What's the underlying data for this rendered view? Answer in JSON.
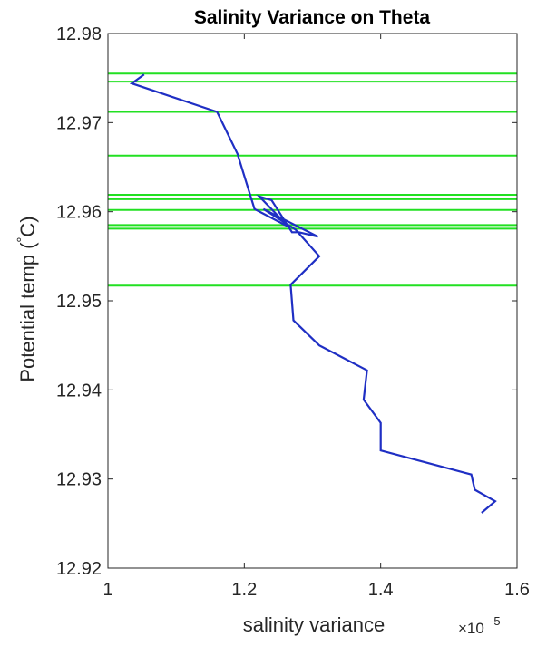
{
  "chart_data": {
    "type": "line",
    "title": "Salinity Variance on Theta",
    "xlabel": "salinity variance",
    "ylabel": "Potential temp (",
    "ylabel_degree": "°",
    "ylabel_unit": "C)",
    "x_exponent_base": "×10",
    "x_exponent_power": "-5",
    "xlim": [
      1.0,
      1.6
    ],
    "ylim": [
      12.92,
      12.98
    ],
    "xticks": [
      "1",
      "1.2",
      "1.4",
      "1.6"
    ],
    "yticks": [
      "12.92",
      "12.93",
      "12.94",
      "12.95",
      "12.96",
      "12.97",
      "12.98"
    ],
    "xtick_values": [
      1.0,
      1.2,
      1.4,
      1.6
    ],
    "ytick_values": [
      12.92,
      12.93,
      12.94,
      12.95,
      12.96,
      12.97,
      12.98
    ],
    "grid": false,
    "series": [
      {
        "color": "#1f2fc4",
        "x": [
          1.053,
          1.035,
          1.16,
          1.19,
          1.215,
          1.265,
          1.222,
          1.24,
          1.27,
          1.28,
          1.308,
          1.228,
          1.275,
          1.31,
          1.268,
          1.272,
          1.31,
          1.38,
          1.375,
          1.4,
          1.4,
          1.533,
          1.538,
          1.568,
          1.548
        ],
        "y": [
          12.9754,
          12.9744,
          12.9712,
          12.9665,
          12.9603,
          12.9583,
          12.9617,
          12.9613,
          12.9577,
          12.9577,
          12.9572,
          12.9603,
          12.958,
          12.955,
          12.9518,
          12.9478,
          12.945,
          12.9422,
          12.9389,
          12.9363,
          12.9332,
          12.9305,
          12.9288,
          12.9275,
          12.9262
        ]
      }
    ],
    "hlines": {
      "color": "#22e022",
      "y": [
        12.9755,
        12.9746,
        12.9712,
        12.9663,
        12.9619,
        12.9614,
        12.9602,
        12.9585,
        12.9581,
        12.9517
      ]
    }
  }
}
